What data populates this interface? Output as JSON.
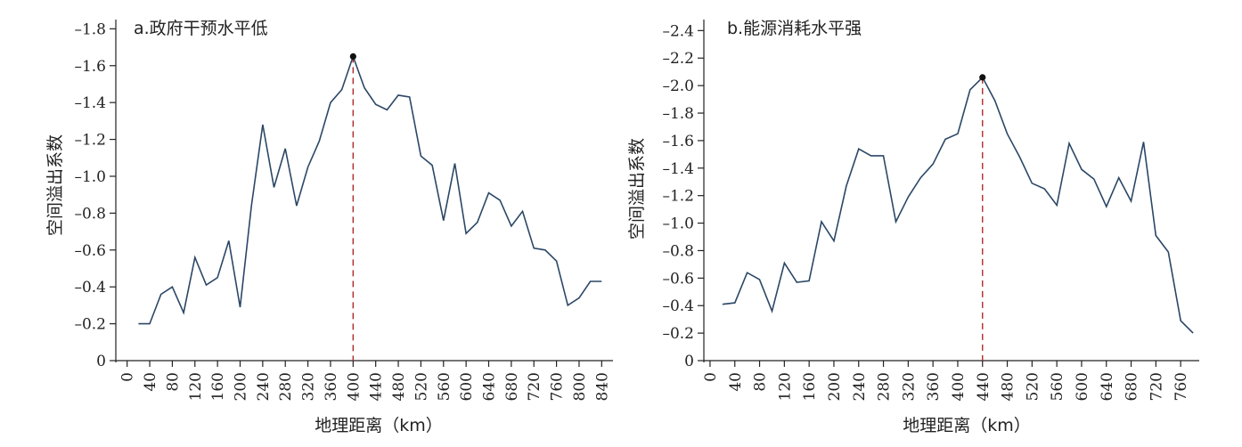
{
  "chart_data": [
    {
      "type": "line",
      "title": "a.政府干预水平低",
      "xlabel": "地理距离（km）",
      "ylabel": "空间溢出系数",
      "x_ticks": [
        0,
        40,
        80,
        120,
        160,
        200,
        240,
        280,
        320,
        360,
        400,
        440,
        480,
        520,
        560,
        600,
        640,
        680,
        720,
        760,
        800,
        840
      ],
      "y_ticks": [
        0,
        -0.2,
        -0.4,
        -0.6,
        -0.8,
        -1.0,
        -1.2,
        -1.4,
        -1.6,
        -1.8
      ],
      "y_tick_labels": [
        "0",
        "–0.2",
        "–0.4",
        "–0.6",
        "–0.8",
        "–1.0",
        "–1.2",
        "–1.4",
        "–1.6",
        "–1.8"
      ],
      "xlim": [
        -20,
        860
      ],
      "ylim": [
        0,
        -1.85
      ],
      "x": [
        20,
        40,
        60,
        80,
        100,
        120,
        140,
        160,
        180,
        200,
        220,
        240,
        260,
        280,
        300,
        320,
        340,
        360,
        380,
        400,
        420,
        440,
        460,
        480,
        500,
        520,
        540,
        560,
        580,
        600,
        620,
        640,
        660,
        680,
        700,
        720,
        740,
        760,
        780,
        800,
        820,
        840
      ],
      "values": [
        -0.2,
        -0.2,
        -0.36,
        -0.4,
        -0.26,
        -0.56,
        -0.41,
        -0.45,
        -0.65,
        -0.29,
        -0.84,
        -1.28,
        -0.94,
        -1.15,
        -0.84,
        -1.05,
        -1.19,
        -1.4,
        -1.47,
        -1.65,
        -1.48,
        -1.39,
        -1.36,
        -1.44,
        -1.43,
        -1.11,
        -1.06,
        -0.76,
        -1.07,
        -0.69,
        -0.75,
        -0.91,
        -0.87,
        -0.73,
        -0.81,
        -0.61,
        -0.6,
        -0.54,
        -0.3,
        -0.34,
        -0.43,
        -0.43
      ],
      "peak": {
        "x": 400,
        "y": -1.65
      },
      "grid": false
    },
    {
      "type": "line",
      "title": "b.能源消耗水平强",
      "xlabel": "地理距离（km）",
      "ylabel": "空间溢出系数",
      "x_ticks": [
        0,
        40,
        80,
        120,
        160,
        200,
        240,
        280,
        320,
        360,
        400,
        440,
        480,
        520,
        560,
        600,
        640,
        680,
        720,
        760
      ],
      "y_ticks": [
        0,
        -0.2,
        -0.4,
        -0.6,
        -0.8,
        -1.0,
        -1.2,
        -1.4,
        -1.6,
        -1.8,
        -2.0,
        -2.2,
        -2.4
      ],
      "y_tick_labels": [
        "0",
        "–0.2",
        "–0.4",
        "–0.6",
        "–0.8",
        "–1.0",
        "–1.2",
        "–1.4",
        "–1.6",
        "–1.8",
        "–2.0",
        "–2.2",
        "–2.4"
      ],
      "xlim": [
        -10,
        790
      ],
      "ylim": [
        0,
        -2.48
      ],
      "x": [
        20,
        40,
        60,
        80,
        100,
        120,
        140,
        160,
        180,
        200,
        220,
        240,
        260,
        280,
        300,
        320,
        340,
        360,
        380,
        400,
        420,
        440,
        460,
        480,
        500,
        520,
        540,
        560,
        580,
        600,
        620,
        640,
        660,
        680,
        700,
        720,
        740,
        760,
        780
      ],
      "values": [
        -0.41,
        -0.42,
        -0.64,
        -0.59,
        -0.36,
        -0.71,
        -0.57,
        -0.58,
        -1.01,
        -0.87,
        -1.27,
        -1.54,
        -1.49,
        -1.49,
        -1.01,
        -1.19,
        -1.33,
        -1.43,
        -1.61,
        -1.65,
        -1.97,
        -2.06,
        -1.89,
        -1.65,
        -1.48,
        -1.29,
        -1.25,
        -1.13,
        -1.58,
        -1.39,
        -1.32,
        -1.12,
        -1.33,
        -1.16,
        -1.59,
        -0.91,
        -0.79,
        -0.29,
        -0.2
      ],
      "peak": {
        "x": 440,
        "y": -2.06
      },
      "grid": false
    }
  ]
}
